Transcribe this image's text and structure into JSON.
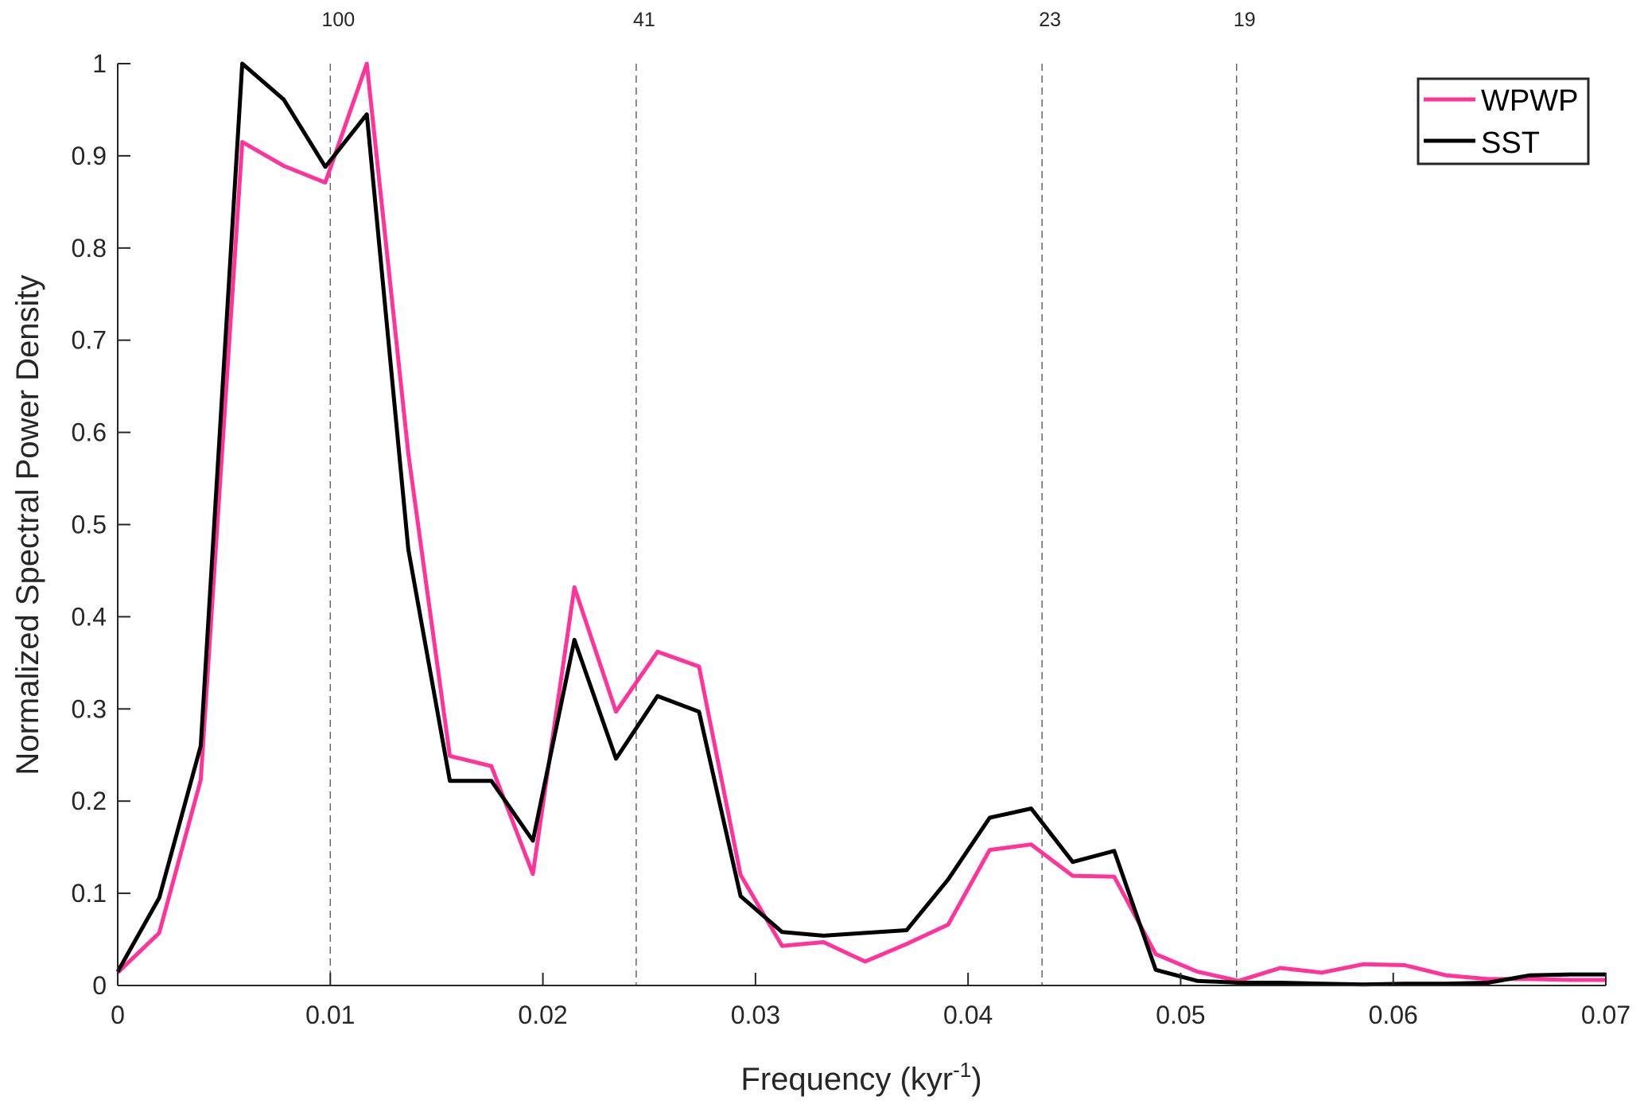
{
  "chart_data": {
    "type": "line",
    "title": "",
    "xlabel": "Frequency (kyr",
    "xlabel_sup": "-1",
    "xlabel_end": ")",
    "ylabel": "Normalized Spectral Power Density",
    "xlim": [
      0,
      0.07
    ],
    "ylim": [
      0,
      1
    ],
    "xticks": [
      0,
      0.01,
      0.02,
      0.03,
      0.04,
      0.05,
      0.06,
      0.07
    ],
    "xtick_labels": [
      "0",
      "0.01",
      "0.02",
      "0.03",
      "0.04",
      "0.05",
      "0.06",
      "0.07"
    ],
    "yticks": [
      0,
      0.1,
      0.2,
      0.3,
      0.4,
      0.5,
      0.6,
      0.7,
      0.8,
      0.9,
      1
    ],
    "ytick_labels": [
      "0",
      "0.1",
      "0.2",
      "0.3",
      "0.4",
      "0.5",
      "0.6",
      "0.7",
      "0.8",
      "0.9",
      "1"
    ],
    "grid": false,
    "legend_position": "top-right",
    "x_step": 0.001953125,
    "reference_lines": [
      {
        "x": 0.01,
        "label": "100"
      },
      {
        "x": 0.02439,
        "label": "41"
      },
      {
        "x": 0.04348,
        "label": "23"
      },
      {
        "x": 0.05263,
        "label": "19"
      }
    ],
    "series": [
      {
        "name": "WPWP",
        "color": "#ff3399",
        "values": [
          0.014,
          0.057,
          0.223,
          0.915,
          0.889,
          0.871,
          1.0,
          0.577,
          0.249,
          0.238,
          0.121,
          0.432,
          0.297,
          0.362,
          0.346,
          0.12,
          0.043,
          0.047,
          0.026,
          0.045,
          0.066,
          0.147,
          0.153,
          0.119,
          0.118,
          0.034,
          0.015,
          0.005,
          0.019,
          0.014,
          0.023,
          0.022,
          0.011,
          0.007,
          0.007,
          0.006,
          0.006
        ]
      },
      {
        "name": "SST",
        "color": "#000000",
        "values": [
          0.015,
          0.095,
          0.26,
          1.0,
          0.961,
          0.888,
          0.945,
          0.473,
          0.222,
          0.222,
          0.157,
          0.375,
          0.246,
          0.314,
          0.297,
          0.097,
          0.058,
          0.054,
          0.057,
          0.06,
          0.115,
          0.182,
          0.192,
          0.134,
          0.146,
          0.017,
          0.005,
          0.003,
          0.003,
          0.002,
          0.001,
          0.002,
          0.002,
          0.003,
          0.011,
          0.012,
          0.012
        ]
      }
    ]
  }
}
